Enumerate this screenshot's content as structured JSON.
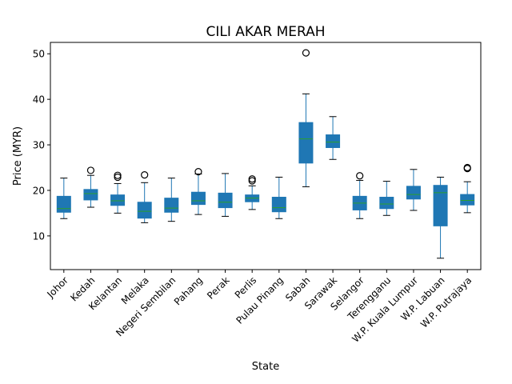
{
  "chart_data": {
    "type": "box",
    "title": "CILI AKAR MERAH",
    "xlabel": "State",
    "ylabel": "Price (MYR)",
    "ylim": [
      2.6,
      52.5
    ],
    "yticks": [
      10,
      20,
      30,
      40,
      50
    ],
    "categories": [
      "Johor",
      "Kedah",
      "Kelantan",
      "Melaka",
      "Negeri Sembilan",
      "Pahang",
      "Perak",
      "Perlis",
      "Pulau Pinang",
      "Sabah",
      "Sarawak",
      "Selangor",
      "Terengganu",
      "W.P. Kuala Lumpur",
      "W.P. Labuan",
      "W.P. Putrajaya"
    ],
    "boxes": [
      {
        "whislo": 13.8,
        "q1": 15.2,
        "med": 16.0,
        "q3": 18.7,
        "whishi": 22.7,
        "fliers": []
      },
      {
        "whislo": 16.3,
        "q1": 17.9,
        "med": 19.3,
        "q3": 20.2,
        "whishi": 23.3,
        "fliers": [
          24.4
        ]
      },
      {
        "whislo": 15.0,
        "q1": 16.7,
        "med": 17.7,
        "q3": 19.0,
        "whishi": 21.5,
        "fliers": [
          22.9,
          23.3
        ]
      },
      {
        "whislo": 12.9,
        "q1": 13.9,
        "med": 15.4,
        "q3": 17.4,
        "whishi": 21.7,
        "fliers": [
          23.4
        ]
      },
      {
        "whislo": 13.2,
        "q1": 15.2,
        "med": 16.1,
        "q3": 18.3,
        "whishi": 22.7,
        "fliers": []
      },
      {
        "whislo": 14.7,
        "q1": 16.9,
        "med": 17.7,
        "q3": 19.6,
        "whishi": 23.6,
        "fliers": [
          24.1
        ]
      },
      {
        "whislo": 14.3,
        "q1": 16.2,
        "med": 17.4,
        "q3": 19.4,
        "whishi": 23.7,
        "fliers": []
      },
      {
        "whislo": 15.8,
        "q1": 17.5,
        "med": 18.3,
        "q3": 19.0,
        "whishi": 21.0,
        "fliers": [
          22.1,
          22.5
        ]
      },
      {
        "whislo": 13.8,
        "q1": 15.3,
        "med": 16.2,
        "q3": 18.5,
        "whishi": 22.9,
        "fliers": []
      },
      {
        "whislo": 20.8,
        "q1": 26.0,
        "med": 31.3,
        "q3": 34.9,
        "whishi": 41.2,
        "fliers": [
          50.2
        ]
      },
      {
        "whislo": 26.8,
        "q1": 29.4,
        "med": 30.6,
        "q3": 32.2,
        "whishi": 36.2,
        "fliers": []
      },
      {
        "whislo": 13.8,
        "q1": 15.7,
        "med": 17.2,
        "q3": 18.7,
        "whishi": 22.2,
        "fliers": [
          23.2
        ]
      },
      {
        "whislo": 14.5,
        "q1": 16.0,
        "med": 17.0,
        "q3": 18.5,
        "whishi": 22.0,
        "fliers": []
      },
      {
        "whislo": 15.6,
        "q1": 18.1,
        "med": 19.1,
        "q3": 20.9,
        "whishi": 24.6,
        "fliers": []
      },
      {
        "whislo": 5.1,
        "q1": 12.2,
        "med": 19.5,
        "q3": 21.1,
        "whishi": 22.9,
        "fliers": []
      },
      {
        "whislo": 15.1,
        "q1": 16.8,
        "med": 17.8,
        "q3": 19.1,
        "whishi": 21.9,
        "fliers": [
          24.8,
          25.0
        ]
      }
    ],
    "grid": false,
    "legend": "none",
    "colors": {
      "box_fill": "#1f77b4",
      "whisker": "#1f77b4",
      "median": "#2ca02c",
      "flier_edge": "#000000",
      "axes": "#000000",
      "background": "#ffffff"
    }
  }
}
